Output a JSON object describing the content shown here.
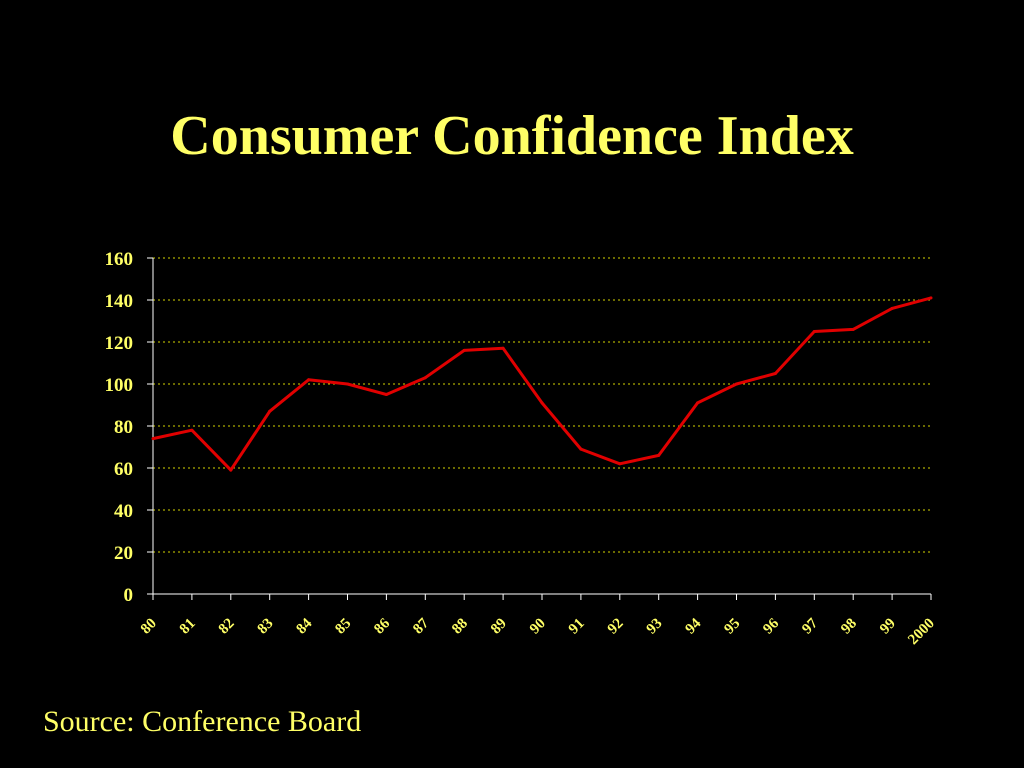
{
  "slide": {
    "title": "Consumer Confidence Index",
    "source": "Source: Conference Board"
  },
  "colors": {
    "background": "#000000",
    "text": "#FFFF66",
    "line": "#E00000",
    "grid": "#D4D400",
    "axis": "#FFFFFF"
  },
  "chart_data": {
    "type": "line",
    "title": "Consumer Confidence Index",
    "xlabel": "",
    "ylabel": "",
    "categories": [
      "80",
      "81",
      "82",
      "83",
      "84",
      "85",
      "86",
      "87",
      "88",
      "89",
      "90",
      "91",
      "92",
      "93",
      "94",
      "95",
      "96",
      "97",
      "98",
      "99",
      "2000"
    ],
    "series": [
      {
        "values": [
          74,
          78,
          59,
          87,
          102,
          100,
          95,
          103,
          116,
          117,
          91,
          69,
          62,
          66,
          91,
          100,
          105,
          125,
          126,
          136,
          141
        ]
      }
    ],
    "ylim": [
      0,
      160
    ],
    "yticks": [
      0,
      20,
      40,
      60,
      80,
      100,
      120,
      140,
      160
    ],
    "grid": "horizontal dotted",
    "legend": "none"
  }
}
